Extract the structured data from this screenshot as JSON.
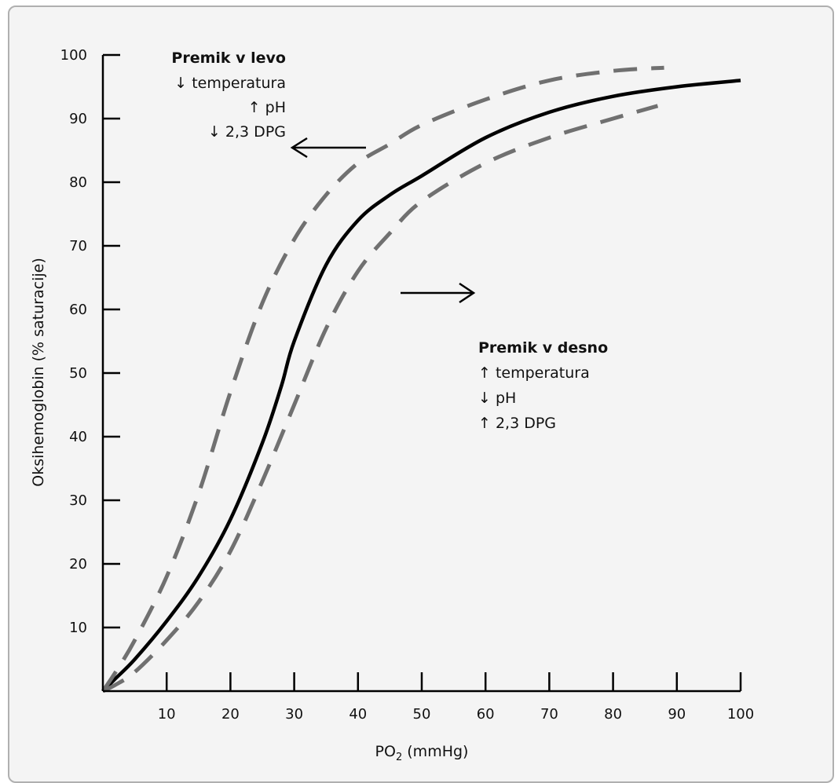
{
  "chart_data": {
    "type": "line",
    "xlabel": "PO",
    "xlabel_sub": "2",
    "xlabel_unit": " (mmHg)",
    "ylabel": "Oksihemoglobin (% saturacije)",
    "xlim": [
      0,
      100
    ],
    "ylim": [
      0,
      100
    ],
    "x_ticks": [
      10,
      20,
      30,
      40,
      50,
      60,
      70,
      80,
      90,
      100
    ],
    "y_ticks": [
      10,
      20,
      30,
      40,
      50,
      60,
      70,
      80,
      90,
      100
    ],
    "grid": false,
    "series": [
      {
        "style": "solid",
        "color": "#000000",
        "x": [
          0,
          2,
          5,
          10,
          15,
          20,
          25,
          28,
          30,
          35,
          40,
          45,
          50,
          60,
          70,
          80,
          90,
          100
        ],
        "y": [
          0,
          2,
          5,
          11,
          18,
          27,
          39,
          48,
          55,
          67,
          74,
          78,
          81,
          87,
          91,
          93.5,
          95,
          96
        ]
      },
      {
        "style": "dashed",
        "color": "#707070",
        "x": [
          0,
          2,
          5,
          10,
          15,
          20,
          25,
          30,
          35,
          40,
          45,
          50,
          60,
          70,
          80,
          88
        ],
        "y": [
          0,
          3,
          8,
          18,
          31,
          47,
          61,
          71,
          78,
          83,
          86,
          89,
          93,
          96,
          97.5,
          98
        ]
      },
      {
        "style": "dashed",
        "color": "#707070",
        "x": [
          0,
          2,
          5,
          10,
          15,
          20,
          25,
          30,
          35,
          40,
          45,
          50,
          60,
          70,
          80,
          87
        ],
        "y": [
          0,
          1,
          3,
          8,
          14,
          22,
          33,
          45,
          57,
          66,
          72,
          77,
          83,
          87,
          90,
          92
        ]
      }
    ],
    "annotations": {
      "left": {
        "title": "Premik v levo",
        "lines": [
          "↓ temperatura",
          "↑ pH",
          "↓ 2,3 DPG"
        ]
      },
      "right": {
        "title": "Premik v desno",
        "lines": [
          "↑ temperatura",
          "↓ pH",
          "↑ 2,3 DPG"
        ]
      }
    }
  }
}
